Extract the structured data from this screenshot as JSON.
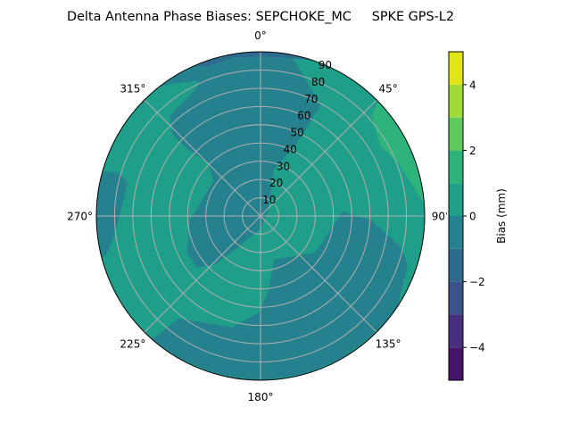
{
  "chart_data": {
    "type": "polar-contour",
    "title": "Delta Antenna Phase Biases: SEPCHOKE_MC     SPKE GPS-L2",
    "theta_direction": "clockwise",
    "theta_zero": "north",
    "theta_ticks": [
      0,
      45,
      90,
      135,
      180,
      225,
      270,
      315
    ],
    "theta_tick_labels": [
      "0°",
      "45°",
      "90°",
      "135°",
      "180°",
      "225°",
      "270°",
      "315°"
    ],
    "r_range": [
      0,
      90
    ],
    "r_ticks": [
      10,
      20,
      30,
      40,
      50,
      60,
      70,
      80,
      90
    ],
    "r_tick_labels": [
      "10",
      "20",
      "30",
      "40",
      "50",
      "60",
      "70",
      "80",
      "90"
    ],
    "grid": true,
    "levels": [
      -5,
      -4,
      -3,
      -2,
      -1,
      0,
      1,
      2,
      3,
      4,
      5
    ],
    "level_colors": [
      "#461567",
      "#472f7d",
      "#3b528b",
      "#2f6b8e",
      "#26818e",
      "#1f9e89",
      "#2eb37c",
      "#60ca60",
      "#a2da37",
      "#e2e418"
    ],
    "background_level_bin": [
      0,
      1
    ],
    "regions": [
      {
        "bin": [
          -1,
          0
        ],
        "points_theta_r": [
          [
            10.8,
            90
          ],
          [
            28.5,
            69
          ],
          [
            26.6,
            45
          ],
          [
            16,
            26
          ],
          [
            58,
            5
          ],
          [
            180,
            7
          ],
          [
            215.5,
            21
          ],
          [
            223.4,
            37
          ],
          [
            231,
            45
          ],
          [
            243.4,
            45
          ],
          [
            266.4,
            39
          ],
          [
            306.9,
            32
          ],
          [
            315,
            41
          ],
          [
            312.5,
            54
          ],
          [
            312.9,
            66
          ],
          [
            317.7,
            74
          ],
          [
            334.6,
            79
          ],
          [
            334.7,
            82
          ],
          [
            326.4,
            87
          ],
          [
            321.6,
            90
          ],
          [
            330,
            90
          ],
          [
            340,
            90
          ],
          [
            350,
            90
          ],
          [
            360,
            90
          ],
          [
            370.8,
            90
          ]
        ]
      },
      {
        "bin": [
          -1,
          0
        ],
        "points_theta_r": [
          [
            162.6,
            25
          ],
          [
            123.9,
            36
          ],
          [
            86.9,
            45
          ],
          [
            92.3,
            61
          ],
          [
            102.5,
            79
          ],
          [
            108.4,
            85
          ],
          [
            123.1,
            90
          ],
          [
            135,
            90
          ],
          [
            150,
            90
          ],
          [
            165,
            90
          ],
          [
            180,
            90
          ],
          [
            195,
            90
          ],
          [
            210,
            90
          ],
          [
            221.3,
            90
          ],
          [
            218.7,
            72
          ],
          [
            194.4,
            63
          ],
          [
            181,
            53
          ],
          [
            174.6,
            42
          ]
        ]
      },
      {
        "bin": [
          -1,
          0
        ],
        "points_theta_r": [
          [
            285.8,
            90
          ],
          [
            287.1,
            81
          ],
          [
            283.9,
            75
          ],
          [
            263.7,
            80
          ],
          [
            256.9,
            86
          ],
          [
            255,
            90
          ],
          [
            262,
            90
          ],
          [
            270,
            90
          ],
          [
            278,
            90
          ]
        ]
      },
      {
        "bin": [
          -2,
          -1
        ],
        "points_theta_r": [
          [
            336,
            90
          ],
          [
            340,
            87
          ],
          [
            350,
            88
          ],
          [
            360,
            87.5
          ],
          [
            370,
            88
          ],
          [
            378,
            90
          ],
          [
            370,
            90
          ],
          [
            360,
            90
          ],
          [
            350,
            90
          ],
          [
            340,
            90
          ]
        ]
      },
      {
        "bin": [
          1,
          2
        ],
        "points_theta_r": [
          [
            45.7,
            90
          ],
          [
            48.1,
            82
          ],
          [
            59.7,
            76
          ],
          [
            69.2,
            81
          ],
          [
            76.9,
            84
          ],
          [
            86,
            90
          ],
          [
            80,
            90
          ],
          [
            70,
            90
          ],
          [
            60,
            90
          ],
          [
            50,
            90
          ]
        ]
      }
    ],
    "colorbar": {
      "label": "Bias (mm)",
      "range": [
        -5,
        5
      ],
      "ticks": [
        -4,
        -2,
        0,
        2,
        4
      ],
      "tick_labels": [
        "−4",
        "−2",
        "0",
        "2",
        "4"
      ]
    }
  }
}
